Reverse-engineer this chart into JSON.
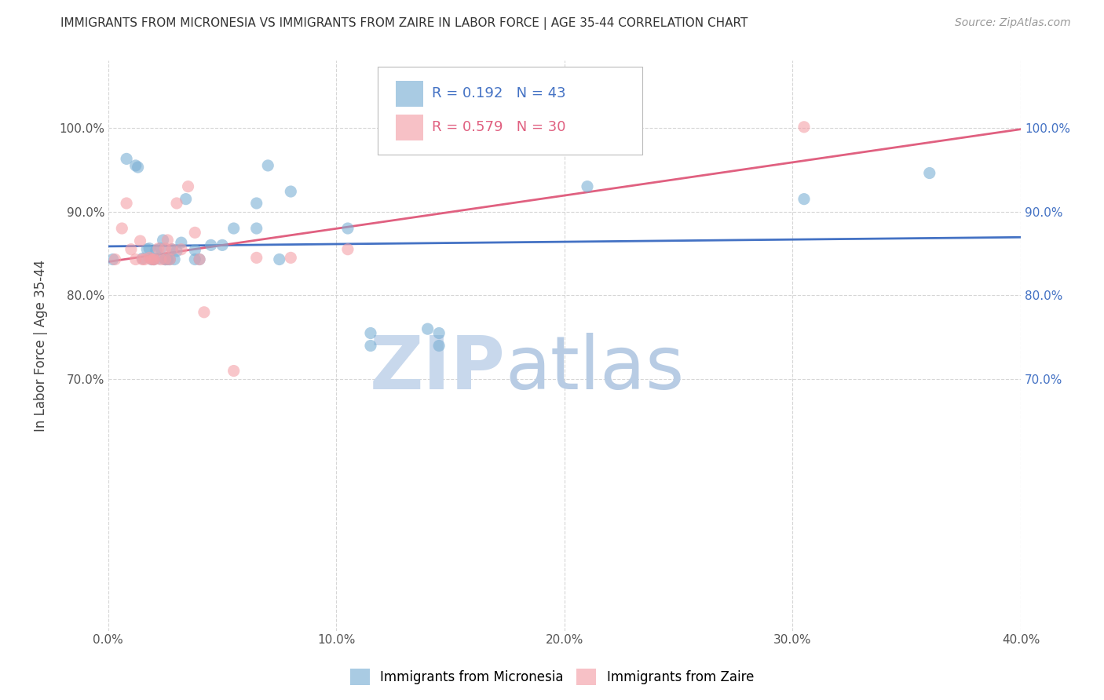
{
  "title": "IMMIGRANTS FROM MICRONESIA VS IMMIGRANTS FROM ZAIRE IN LABOR FORCE | AGE 35-44 CORRELATION CHART",
  "source": "Source: ZipAtlas.com",
  "ylabel": "In Labor Force | Age 35-44",
  "xlim": [
    0.0,
    0.4
  ],
  "ylim": [
    0.4,
    1.08
  ],
  "xtick_labels": [
    "0.0%",
    "10.0%",
    "20.0%",
    "30.0%",
    "40.0%"
  ],
  "xtick_values": [
    0.0,
    0.1,
    0.2,
    0.3,
    0.4
  ],
  "ytick_labels": [
    "100.0%",
    "90.0%",
    "80.0%",
    "70.0%"
  ],
  "ytick_values": [
    1.0,
    0.9,
    0.8,
    0.7
  ],
  "legend_labels": [
    "Immigrants from Micronesia",
    "Immigrants from Zaire"
  ],
  "blue_color": "#7BAFD4",
  "pink_color": "#F4A0A8",
  "blue_line_color": "#4472C4",
  "pink_line_color": "#E06080",
  "R_blue": 0.192,
  "N_blue": 43,
  "R_pink": 0.579,
  "N_pink": 30,
  "blue_scatter_x": [
    0.002,
    0.008,
    0.012,
    0.013,
    0.015,
    0.017,
    0.018,
    0.019,
    0.02,
    0.02,
    0.021,
    0.022,
    0.023,
    0.024,
    0.025,
    0.025,
    0.026,
    0.027,
    0.028,
    0.029,
    0.03,
    0.032,
    0.034,
    0.038,
    0.038,
    0.04,
    0.045,
    0.05,
    0.055,
    0.065,
    0.065,
    0.07,
    0.075,
    0.08,
    0.105,
    0.115,
    0.115,
    0.14,
    0.145,
    0.145,
    0.21,
    0.305,
    0.36
  ],
  "blue_scatter_y": [
    0.843,
    0.963,
    0.955,
    0.953,
    0.844,
    0.855,
    0.856,
    0.843,
    0.843,
    0.844,
    0.854,
    0.844,
    0.856,
    0.866,
    0.843,
    0.843,
    0.843,
    0.843,
    0.855,
    0.843,
    0.853,
    0.863,
    0.915,
    0.854,
    0.843,
    0.843,
    0.86,
    0.86,
    0.88,
    0.91,
    0.88,
    0.955,
    0.843,
    0.924,
    0.88,
    0.755,
    0.74,
    0.76,
    0.74,
    0.755,
    0.93,
    0.915,
    0.946
  ],
  "pink_scatter_x": [
    0.003,
    0.006,
    0.008,
    0.01,
    0.012,
    0.014,
    0.015,
    0.016,
    0.018,
    0.019,
    0.02,
    0.02,
    0.022,
    0.023,
    0.025,
    0.025,
    0.026,
    0.027,
    0.028,
    0.03,
    0.032,
    0.035,
    0.038,
    0.04,
    0.042,
    0.055,
    0.065,
    0.08,
    0.105,
    0.305
  ],
  "pink_scatter_y": [
    0.843,
    0.88,
    0.91,
    0.855,
    0.843,
    0.865,
    0.843,
    0.843,
    0.845,
    0.843,
    0.843,
    0.843,
    0.856,
    0.843,
    0.856,
    0.843,
    0.866,
    0.843,
    0.855,
    0.91,
    0.855,
    0.93,
    0.875,
    0.843,
    0.78,
    0.71,
    0.845,
    0.845,
    0.855,
    1.001
  ],
  "watermark_zip_color": "#C8D8EC",
  "watermark_atlas_color": "#B8CCE4",
  "background_color": "#FFFFFF",
  "grid_color": "#CCCCCC",
  "title_fontsize": 11,
  "axis_label_fontsize": 12,
  "tick_fontsize": 11,
  "legend_fontsize": 12,
  "source_fontsize": 10
}
